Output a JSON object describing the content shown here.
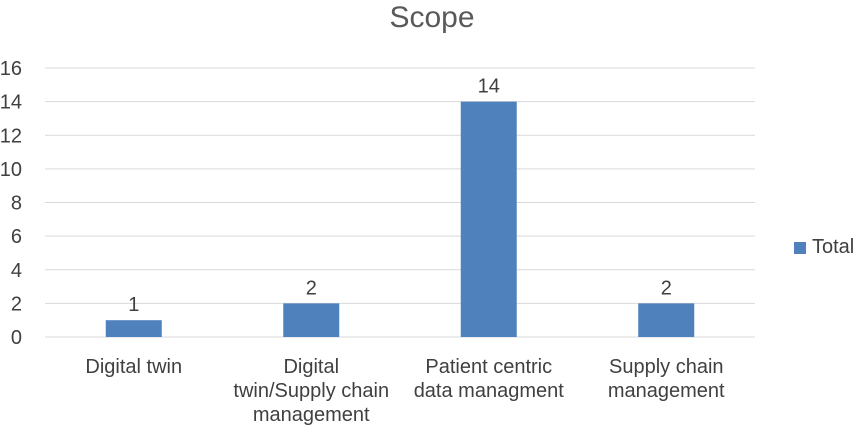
{
  "chart_data": {
    "type": "bar",
    "title": "Scope",
    "categories": [
      "Digital twin",
      "Digital twin/Supply chain management",
      "Patient centric data managment",
      "Supply chain management"
    ],
    "category_lines": [
      [
        "Digital twin"
      ],
      [
        "Digital",
        "twin/Supply chain",
        "management"
      ],
      [
        "Patient centric",
        "data managment"
      ],
      [
        "Supply chain",
        "management"
      ]
    ],
    "series": [
      {
        "name": "Total",
        "values": [
          1,
          2,
          14,
          2
        ],
        "color": "#4F81BD"
      }
    ],
    "data_labels": [
      "1",
      "2",
      "14",
      "2"
    ],
    "ylim": [
      0,
      16
    ],
    "yticks": [
      0,
      2,
      4,
      6,
      8,
      10,
      12,
      14,
      16
    ],
    "grid": true,
    "legend_position": "right",
    "xlabel": "",
    "ylabel": ""
  }
}
